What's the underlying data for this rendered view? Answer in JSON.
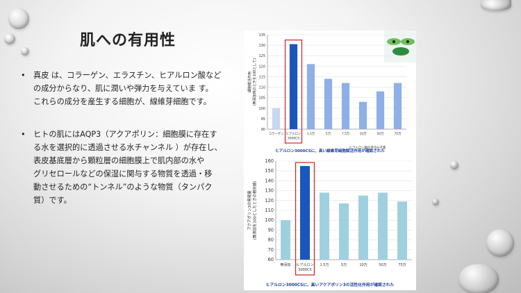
{
  "slide": {
    "title": "肌への有用性",
    "bullets": [
      {
        "marker": "•",
        "lines": [
          "真皮 は、コラーゲン、エラスチン、ヒアルロン酸など",
          "の成分からなり、肌に潤いや弾力を与えていま す。",
          "これらの成分を産生する細胞が、線維芽細胞です。"
        ]
      },
      {
        "marker": "•",
        "lines": [
          "ヒトの肌にはAQP3（アクアポリン：細胞膜に存在す",
          "る水を選択的に透過させる水チャンネル ）が存在し、",
          "表皮基底層から顆粒層の細胞膜上で肌内部の水や",
          "グリセロールなどの保湿に関与する物質を透過・移",
          "動させるための“トンネル”のような物質（タンパク",
          "質）です。"
        ]
      }
    ]
  },
  "colors": {
    "highlight_bar": "#1a56c0",
    "bar_light": "#8eb0e6",
    "bar_teal": "#9fd0e0",
    "highlight_box": "#d32020",
    "caption": "#1d3f9a"
  },
  "chart_data": [
    {
      "type": "bar",
      "categories": [
        "コラーゲン",
        "ヒアルロン 3000CS",
        "1.5万",
        "5万",
        "7.5万",
        "10万",
        "50万",
        "75万"
      ],
      "values": [
        100,
        130.5,
        121,
        114,
        112,
        103,
        108,
        112
      ],
      "ylabel": "細胞賦活作用 (無添加時のときを100として)",
      "xlabel": "ヒアルロン酸の平均分子量",
      "ylim": [
        90,
        135
      ],
      "yticks": [
        90,
        95,
        100,
        105,
        110,
        115,
        120,
        125,
        130,
        135
      ],
      "highlight_index": 1,
      "caption": "ヒアルロン3000CSに、高い線維芽細胞賦活作用が確認された"
    },
    {
      "type": "bar",
      "categories": [
        "無添加",
        "ヒアルロン 3000CS",
        "1.5万",
        "5万",
        "10万",
        "50万",
        "75万"
      ],
      "values": [
        100,
        155,
        128,
        117,
        125,
        128,
        119
      ],
      "ylabel": "アクアポリン3の発現量 (無添加を100としたときの相対値)",
      "ylim": [
        60,
        160
      ],
      "yticks": [
        60,
        70,
        80,
        90,
        100,
        110,
        120,
        130,
        140,
        150,
        160
      ],
      "highlight_index": 1,
      "caption": "ヒアルロン3000CSに、高いアクアポリン3の活性化作用が確認された"
    }
  ]
}
